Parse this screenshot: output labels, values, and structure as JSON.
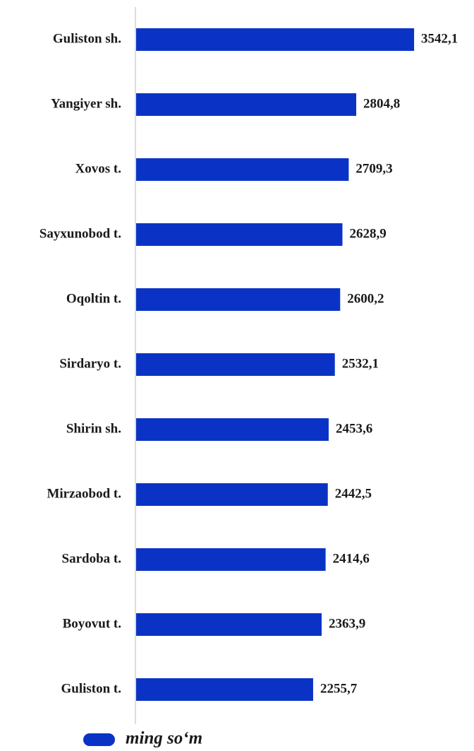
{
  "chart_data": {
    "type": "bar",
    "orientation": "horizontal",
    "categories": [
      "Guliston sh.",
      "Yangiyer sh.",
      "Xovos t.",
      "Sayxunobod t.",
      "Oqoltin t.",
      "Sirdaryo t.",
      "Shirin sh.",
      "Mirzaobod t.",
      "Sardoba t.",
      "Boyovut t.",
      "Guliston t."
    ],
    "series": [
      {
        "name": "ming so‘m",
        "color": "#0a33c6",
        "values": [
          3542.1,
          2804.8,
          2709.3,
          2628.9,
          2600.2,
          2532.1,
          2453.6,
          2442.5,
          2414.6,
          2363.9,
          2255.7
        ],
        "value_labels": [
          "3542,1",
          "2804,8",
          "2709,3",
          "2628,9",
          "2600,2",
          "2532,1",
          "2453,6",
          "2442,5",
          "2414,6",
          "2363,9",
          "2255,7"
        ]
      }
    ],
    "xlim": [
      0,
      4000
    ],
    "legend": "bottom"
  }
}
